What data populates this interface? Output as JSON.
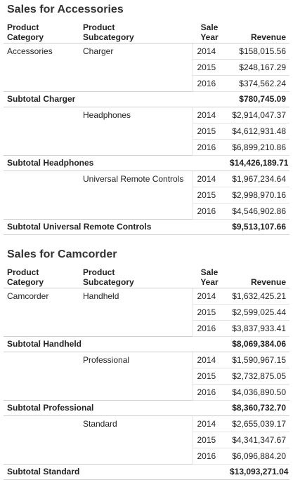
{
  "headers": {
    "category": [
      "Product",
      "Category"
    ],
    "subcategory": [
      "Product",
      "Subcategory"
    ],
    "year": [
      "Sale",
      "Year"
    ],
    "revenue": "Revenue"
  },
  "sections": [
    {
      "title": "Sales for Accessories",
      "category": "Accessories",
      "groups": [
        {
          "subcategory": "Charger",
          "rows": [
            {
              "year": "2014",
              "revenue": "$158,015.56"
            },
            {
              "year": "2015",
              "revenue": "$248,167.29"
            },
            {
              "year": "2016",
              "revenue": "$374,562.24"
            }
          ],
          "subtotal_label": "Subtotal Charger",
          "subtotal_value": "$780,745.09"
        },
        {
          "subcategory": "Headphones",
          "rows": [
            {
              "year": "2014",
              "revenue": "$2,914,047.37"
            },
            {
              "year": "2015",
              "revenue": "$4,612,931.48"
            },
            {
              "year": "2016",
              "revenue": "$6,899,210.86"
            }
          ],
          "subtotal_label": "Subtotal Headphones",
          "subtotal_value": "$14,426,189.71"
        },
        {
          "subcategory": "Universal Remote Controls",
          "rows": [
            {
              "year": "2014",
              "revenue": "$1,967,234.64"
            },
            {
              "year": "2015",
              "revenue": "$2,998,970.16"
            },
            {
              "year": "2016",
              "revenue": "$4,546,902.86"
            }
          ],
          "subtotal_label": "Subtotal Universal Remote Controls",
          "subtotal_value": "$9,513,107.66"
        }
      ]
    },
    {
      "title": "Sales for Camcorder",
      "category": "Camcorder",
      "groups": [
        {
          "subcategory": "Handheld",
          "rows": [
            {
              "year": "2014",
              "revenue": "$1,632,425.21"
            },
            {
              "year": "2015",
              "revenue": "$2,599,025.44"
            },
            {
              "year": "2016",
              "revenue": "$3,837,933.41"
            }
          ],
          "subtotal_label": "Subtotal Handheld",
          "subtotal_value": "$8,069,384.06"
        },
        {
          "subcategory": "Professional",
          "rows": [
            {
              "year": "2014",
              "revenue": "$1,590,967.15"
            },
            {
              "year": "2015",
              "revenue": "$2,732,875.05"
            },
            {
              "year": "2016",
              "revenue": "$4,036,890.50"
            }
          ],
          "subtotal_label": "Subtotal Professional",
          "subtotal_value": "$8,360,732.70"
        },
        {
          "subcategory": "Standard",
          "rows": [
            {
              "year": "2014",
              "revenue": "$2,655,039.17"
            },
            {
              "year": "2015",
              "revenue": "$4,341,347.67"
            },
            {
              "year": "2016",
              "revenue": "$6,096,884.20"
            }
          ],
          "subtotal_label": "Subtotal Standard",
          "subtotal_value": "$13,093,271.04"
        }
      ]
    }
  ]
}
